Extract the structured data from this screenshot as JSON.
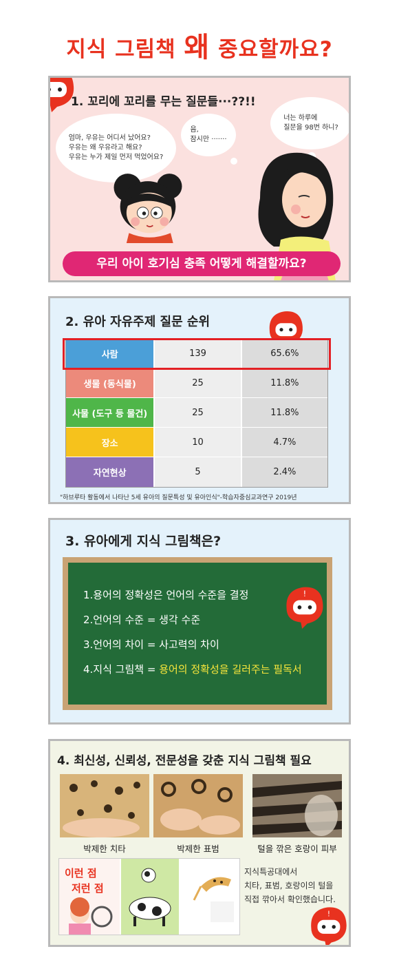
{
  "header": {
    "title_pre": "지식 그림책 ",
    "title_big": "왜",
    "title_post": " 중요할까요?"
  },
  "section1": {
    "title": "1. 꼬리에 꼬리를 무는 질문들···??!!",
    "bubble_child": "엄마, 우유는 어디서 났어요?\n우유는 왜 우유라고 해요?\n우유는 누가 제일 먼저 먹었어요?",
    "bubble_mom": "음,\n잠시만 ·······",
    "bubble_count": "너는 하루에\n질문을 98번 하니?",
    "banner": "우리 아이 호기심 충족 어떻게 해결할까요?"
  },
  "section2": {
    "title": "2. 유아 자유주제 질문 순위",
    "rows": [
      {
        "category": "사람",
        "count": "139",
        "percent": "65.6%",
        "color": "#4b9fd8"
      },
      {
        "category": "생물 (동식물)",
        "count": "25",
        "percent": "11.8%",
        "color": "#ec8a7b"
      },
      {
        "category": "사물 (도구 등 물건)",
        "count": "25",
        "percent": "11.8%",
        "color": "#4fb649"
      },
      {
        "category": "장소",
        "count": "10",
        "percent": "4.7%",
        "color": "#f6c21c"
      },
      {
        "category": "자연현상",
        "count": "5",
        "percent": "2.4%",
        "color": "#8c70b5"
      }
    ],
    "source": "\"하브루타 활동에서 나타난 5세 유아의 질문특성 및 유아인식\"-학습자중심교과연구 2019년"
  },
  "section3": {
    "title": "3. 유아에게 지식 그림책은?",
    "line1": "1.용어의 정확성은 언어의 수준을 결정",
    "line2": "2.언어의 수준 = 생각 수준",
    "line3": "3.언어의 차이 = 사고력의 차이",
    "line4_pre": "4.지식 그림책 = ",
    "line4_hl": "용어의 정확성을 길러주는 필독서"
  },
  "section4": {
    "title": "4. 최신성, 신뢰성, 전문성을 갖춘 지식 그림책 필요",
    "captions": [
      "박제한 치타",
      "박제한 표범",
      "털을 깎은 호랑이 피부"
    ],
    "book_title_1": "이런 점",
    "book_title_2": "저런 점",
    "note": "지식특공대에서\n치타, 표범, 호랑이의 털을\n직접 깎아서 확인했습니다."
  }
}
